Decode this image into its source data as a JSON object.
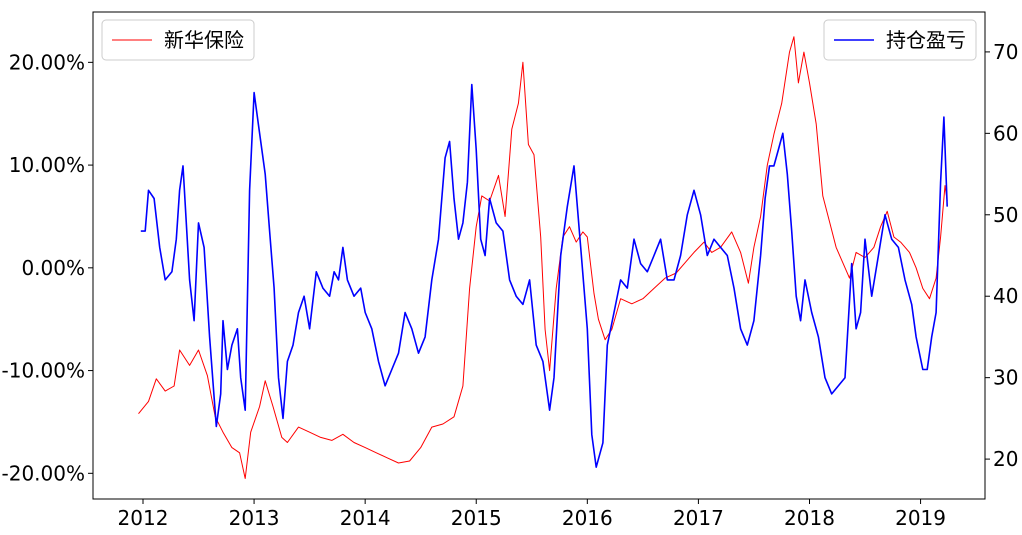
{
  "chart_data": {
    "type": "line",
    "title": "",
    "xlabel": "",
    "ylabel_left": "",
    "ylabel_right": "",
    "x_range": [
      2011.55,
      2019.58
    ],
    "x_ticks": [
      2012,
      2013,
      2014,
      2015,
      2016,
      2017,
      2018,
      2019
    ],
    "x_tick_labels": [
      "2012",
      "2013",
      "2014",
      "2015",
      "2016",
      "2017",
      "2018",
      "2019"
    ],
    "y_left_range": [
      -22.5,
      24.9
    ],
    "y_left_ticks": [
      20,
      10,
      0,
      -10,
      -20
    ],
    "y_left_tick_labels": [
      "20.00%",
      "10.00%",
      "0.00%",
      "-10.00%",
      "-20.00%"
    ],
    "y_right_range": [
      15.1,
      74.9
    ],
    "y_right_ticks": [
      70,
      60,
      50,
      40,
      30,
      20
    ],
    "y_right_tick_labels": [
      "70",
      "60",
      "50",
      "40",
      "30",
      "20"
    ],
    "grid": false,
    "series": [
      {
        "name": "新华保险",
        "axis": "left",
        "color": "#ff0000",
        "legend_position": "top-left",
        "points": [
          [
            2011.96,
            -14.2
          ],
          [
            2012.05,
            -13.0
          ],
          [
            2012.12,
            -10.8
          ],
          [
            2012.2,
            -12.0
          ],
          [
            2012.28,
            -11.5
          ],
          [
            2012.33,
            -8.0
          ],
          [
            2012.42,
            -9.5
          ],
          [
            2012.5,
            -8.0
          ],
          [
            2012.58,
            -10.5
          ],
          [
            2012.65,
            -14.5
          ],
          [
            2012.72,
            -16.0
          ],
          [
            2012.8,
            -17.5
          ],
          [
            2012.87,
            -18.0
          ],
          [
            2012.92,
            -20.5
          ],
          [
            2012.97,
            -16.0
          ],
          [
            2013.05,
            -13.5
          ],
          [
            2013.1,
            -11.0
          ],
          [
            2013.17,
            -13.5
          ],
          [
            2013.25,
            -16.5
          ],
          [
            2013.3,
            -17.0
          ],
          [
            2013.4,
            -15.5
          ],
          [
            2013.5,
            -16.0
          ],
          [
            2013.6,
            -16.5
          ],
          [
            2013.7,
            -16.8
          ],
          [
            2013.8,
            -16.2
          ],
          [
            2013.9,
            -17.0
          ],
          [
            2014.0,
            -17.5
          ],
          [
            2014.1,
            -18.0
          ],
          [
            2014.2,
            -18.5
          ],
          [
            2014.3,
            -19.0
          ],
          [
            2014.4,
            -18.8
          ],
          [
            2014.5,
            -17.5
          ],
          [
            2014.6,
            -15.5
          ],
          [
            2014.7,
            -15.2
          ],
          [
            2014.8,
            -14.5
          ],
          [
            2014.88,
            -11.5
          ],
          [
            2014.94,
            -2.0
          ],
          [
            2015.0,
            4.0
          ],
          [
            2015.05,
            7.0
          ],
          [
            2015.12,
            6.5
          ],
          [
            2015.2,
            9.0
          ],
          [
            2015.26,
            5.0
          ],
          [
            2015.32,
            13.5
          ],
          [
            2015.38,
            16.0
          ],
          [
            2015.42,
            20.0
          ],
          [
            2015.47,
            12.0
          ],
          [
            2015.52,
            11.0
          ],
          [
            2015.58,
            3.0
          ],
          [
            2015.62,
            -6.0
          ],
          [
            2015.66,
            -10.0
          ],
          [
            2015.72,
            -2.0
          ],
          [
            2015.78,
            3.0
          ],
          [
            2015.84,
            4.0
          ],
          [
            2015.9,
            2.5
          ],
          [
            2015.96,
            3.5
          ],
          [
            2016.0,
            3.0
          ],
          [
            2016.06,
            -2.5
          ],
          [
            2016.1,
            -5.0
          ],
          [
            2016.16,
            -7.0
          ],
          [
            2016.22,
            -6.0
          ],
          [
            2016.3,
            -3.0
          ],
          [
            2016.4,
            -3.5
          ],
          [
            2016.5,
            -3.0
          ],
          [
            2016.6,
            -2.0
          ],
          [
            2016.7,
            -1.0
          ],
          [
            2016.8,
            -0.5
          ],
          [
            2016.88,
            0.5
          ],
          [
            2016.96,
            1.5
          ],
          [
            2017.05,
            2.5
          ],
          [
            2017.12,
            1.5
          ],
          [
            2017.2,
            2.0
          ],
          [
            2017.3,
            3.5
          ],
          [
            2017.38,
            1.5
          ],
          [
            2017.45,
            -1.5
          ],
          [
            2017.5,
            2.0
          ],
          [
            2017.56,
            5.0
          ],
          [
            2017.62,
            10.0
          ],
          [
            2017.68,
            13.0
          ],
          [
            2017.75,
            16.0
          ],
          [
            2017.82,
            21.0
          ],
          [
            2017.86,
            22.5
          ],
          [
            2017.9,
            18.0
          ],
          [
            2017.95,
            21.0
          ],
          [
            2018.0,
            18.0
          ],
          [
            2018.06,
            14.0
          ],
          [
            2018.12,
            7.0
          ],
          [
            2018.18,
            4.5
          ],
          [
            2018.24,
            2.0
          ],
          [
            2018.3,
            0.5
          ],
          [
            2018.36,
            -1.0
          ],
          [
            2018.42,
            1.5
          ],
          [
            2018.5,
            1.0
          ],
          [
            2018.58,
            2.0
          ],
          [
            2018.64,
            4.0
          ],
          [
            2018.7,
            5.5
          ],
          [
            2018.76,
            3.0
          ],
          [
            2018.82,
            2.5
          ],
          [
            2018.9,
            1.5
          ],
          [
            2018.96,
            0.0
          ],
          [
            2019.02,
            -2.0
          ],
          [
            2019.08,
            -3.0
          ],
          [
            2019.14,
            -1.0
          ],
          [
            2019.18,
            3.0
          ],
          [
            2019.22,
            8.0
          ],
          [
            2019.24,
            6.5
          ]
        ]
      },
      {
        "name": "持仓盈亏",
        "axis": "right",
        "color": "#0000ff",
        "legend_position": "top-right",
        "points": [
          [
            2011.98,
            48.0
          ],
          [
            2012.02,
            48.0
          ],
          [
            2012.05,
            53.0
          ],
          [
            2012.1,
            52.0
          ],
          [
            2012.15,
            46.0
          ],
          [
            2012.2,
            42.0
          ],
          [
            2012.26,
            43.0
          ],
          [
            2012.3,
            47.0
          ],
          [
            2012.33,
            53.0
          ],
          [
            2012.36,
            56.0
          ],
          [
            2012.42,
            42.0
          ],
          [
            2012.46,
            37.0
          ],
          [
            2012.5,
            49.0
          ],
          [
            2012.55,
            46.0
          ],
          [
            2012.6,
            35.0
          ],
          [
            2012.66,
            24.0
          ],
          [
            2012.7,
            28.0
          ],
          [
            2012.72,
            37.0
          ],
          [
            2012.76,
            31.0
          ],
          [
            2012.8,
            34.0
          ],
          [
            2012.85,
            36.0
          ],
          [
            2012.88,
            30.0
          ],
          [
            2012.92,
            26.0
          ],
          [
            2012.96,
            53.0
          ],
          [
            2013.0,
            65.0
          ],
          [
            2013.04,
            61.0
          ],
          [
            2013.1,
            55.0
          ],
          [
            2013.14,
            48.0
          ],
          [
            2013.18,
            41.0
          ],
          [
            2013.22,
            30.0
          ],
          [
            2013.26,
            25.0
          ],
          [
            2013.3,
            32.0
          ],
          [
            2013.35,
            34.0
          ],
          [
            2013.4,
            38.0
          ],
          [
            2013.45,
            40.0
          ],
          [
            2013.5,
            36.0
          ],
          [
            2013.56,
            43.0
          ],
          [
            2013.62,
            41.0
          ],
          [
            2013.68,
            40.0
          ],
          [
            2013.72,
            43.0
          ],
          [
            2013.76,
            42.0
          ],
          [
            2013.8,
            46.0
          ],
          [
            2013.84,
            42.0
          ],
          [
            2013.9,
            40.0
          ],
          [
            2013.96,
            41.0
          ],
          [
            2014.0,
            38.0
          ],
          [
            2014.06,
            36.0
          ],
          [
            2014.12,
            32.0
          ],
          [
            2014.18,
            29.0
          ],
          [
            2014.24,
            31.0
          ],
          [
            2014.3,
            33.0
          ],
          [
            2014.36,
            38.0
          ],
          [
            2014.42,
            36.0
          ],
          [
            2014.48,
            33.0
          ],
          [
            2014.54,
            35.0
          ],
          [
            2014.6,
            42.0
          ],
          [
            2014.66,
            47.0
          ],
          [
            2014.72,
            57.0
          ],
          [
            2014.76,
            59.0
          ],
          [
            2014.8,
            52.0
          ],
          [
            2014.84,
            47.0
          ],
          [
            2014.88,
            49.0
          ],
          [
            2014.92,
            54.0
          ],
          [
            2014.96,
            66.0
          ],
          [
            2015.0,
            58.0
          ],
          [
            2015.04,
            47.0
          ],
          [
            2015.08,
            45.0
          ],
          [
            2015.12,
            52.0
          ],
          [
            2015.18,
            49.0
          ],
          [
            2015.24,
            48.0
          ],
          [
            2015.3,
            42.0
          ],
          [
            2015.36,
            40.0
          ],
          [
            2015.42,
            39.0
          ],
          [
            2015.48,
            42.0
          ],
          [
            2015.54,
            34.0
          ],
          [
            2015.6,
            32.0
          ],
          [
            2015.66,
            26.0
          ],
          [
            2015.7,
            30.0
          ],
          [
            2015.76,
            45.0
          ],
          [
            2015.82,
            51.0
          ],
          [
            2015.88,
            56.0
          ],
          [
            2015.94,
            46.0
          ],
          [
            2016.0,
            36.0
          ],
          [
            2016.04,
            23.0
          ],
          [
            2016.08,
            19.0
          ],
          [
            2016.14,
            22.0
          ],
          [
            2016.18,
            34.0
          ],
          [
            2016.24,
            38.0
          ],
          [
            2016.3,
            42.0
          ],
          [
            2016.36,
            41.0
          ],
          [
            2016.42,
            47.0
          ],
          [
            2016.48,
            44.0
          ],
          [
            2016.54,
            43.0
          ],
          [
            2016.6,
            45.0
          ],
          [
            2016.66,
            47.0
          ],
          [
            2016.72,
            42.0
          ],
          [
            2016.78,
            42.0
          ],
          [
            2016.84,
            45.0
          ],
          [
            2016.9,
            50.0
          ],
          [
            2016.96,
            53.0
          ],
          [
            2017.02,
            50.0
          ],
          [
            2017.08,
            45.0
          ],
          [
            2017.14,
            47.0
          ],
          [
            2017.2,
            46.0
          ],
          [
            2017.26,
            45.0
          ],
          [
            2017.32,
            41.0
          ],
          [
            2017.38,
            36.0
          ],
          [
            2017.44,
            34.0
          ],
          [
            2017.5,
            37.0
          ],
          [
            2017.56,
            45.0
          ],
          [
            2017.6,
            52.0
          ],
          [
            2017.64,
            56.0
          ],
          [
            2017.68,
            56.0
          ],
          [
            2017.72,
            58.0
          ],
          [
            2017.76,
            60.0
          ],
          [
            2017.8,
            55.0
          ],
          [
            2017.84,
            48.0
          ],
          [
            2017.88,
            40.0
          ],
          [
            2017.92,
            37.0
          ],
          [
            2017.96,
            42.0
          ],
          [
            2018.02,
            38.0
          ],
          [
            2018.08,
            35.0
          ],
          [
            2018.14,
            30.0
          ],
          [
            2018.2,
            28.0
          ],
          [
            2018.26,
            29.0
          ],
          [
            2018.32,
            30.0
          ],
          [
            2018.38,
            44.0
          ],
          [
            2018.42,
            36.0
          ],
          [
            2018.46,
            38.0
          ],
          [
            2018.5,
            47.0
          ],
          [
            2018.56,
            40.0
          ],
          [
            2018.62,
            45.0
          ],
          [
            2018.68,
            50.0
          ],
          [
            2018.74,
            47.0
          ],
          [
            2018.8,
            46.0
          ],
          [
            2018.86,
            42.0
          ],
          [
            2018.92,
            39.0
          ],
          [
            2018.96,
            35.0
          ],
          [
            2019.02,
            31.0
          ],
          [
            2019.06,
            31.0
          ],
          [
            2019.1,
            35.0
          ],
          [
            2019.14,
            38.0
          ],
          [
            2019.18,
            54.0
          ],
          [
            2019.21,
            62.0
          ],
          [
            2019.24,
            51.0
          ]
        ]
      }
    ]
  }
}
